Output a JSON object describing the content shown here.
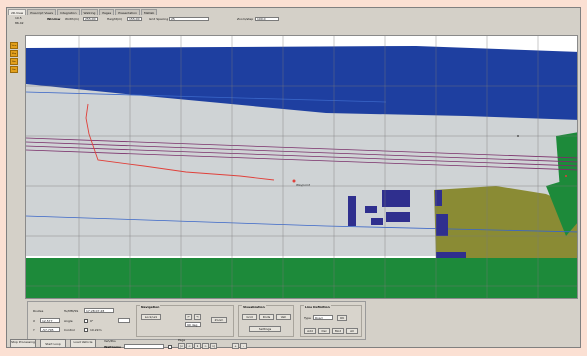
{
  "tabs": [
    {
      "label": "2D-View",
      "active": true
    },
    {
      "label": "Prescript Views",
      "active": false
    },
    {
      "label": "Integration",
      "active": false
    },
    {
      "label": "Walking",
      "active": false
    },
    {
      "label": "Pages",
      "active": false
    },
    {
      "label": "Presentation",
      "active": false
    },
    {
      "label": "Matlab",
      "active": false
    }
  ],
  "info": {
    "coord1": "10.5",
    "coord2": "86.42",
    "window_label": "Window",
    "width_label": "Width(m)",
    "width_value": "255.00",
    "height_label": "Height(m)",
    "height_value": "155.00",
    "grid_label": "Grid Spacing",
    "grid_value": "25",
    "zoom_label": "Zoom/step",
    "zoom_value": "100.0"
  },
  "left_toolbar": [
    "View",
    "Map",
    "Run",
    "Sim"
  ],
  "map": {
    "marker_label": "Waypoint",
    "colors": {
      "road": "#cfd3d5",
      "water": "#1e3fa0",
      "park": "#1d8a3a",
      "field": "#8a8b34",
      "building": "#2f2f8e",
      "grid": "#7a7a7a"
    }
  },
  "panel": {
    "stats": {
      "row1_label": "Routes",
      "row1_a": "Tu/MM/SS",
      "row1_b": "17:28:07.28",
      "row2_label": "X",
      "row2_a": "12.577",
      "row2_b": "Angle",
      "row2_c": "0°",
      "row3_label": "Y",
      "row3_a": "-57.795",
      "row3_b": "Control",
      "row3_c": "10.22m"
    },
    "navigation": {
      "title": "Navigation",
      "lock_label": "Lock/unl",
      "angle_value": "90 deg",
      "zoom_label": "Zoom"
    },
    "visualization": {
      "title": "Visualization",
      "buttons": [
        "Grid",
        "Rnds",
        "Veh"
      ],
      "settings_label": "Settings"
    },
    "line_definition": {
      "title": "Line Definition",
      "type_label": "Type",
      "type_value": "Road",
      "ok_label": "OK",
      "buttons": [
        "Add",
        "Del",
        "Mod",
        "All"
      ]
    }
  },
  "bottom": {
    "buttons": [
      "Stop Processing",
      "Start Loop",
      "Load Vehicle"
    ],
    "fps_label": "Veh/Pos",
    "fps_sub": "Waitname",
    "page_label": "Page",
    "page_buttons": [
      "|<",
      "<",
      "1",
      ">",
      ">|"
    ],
    "extra_buttons": [
      "+",
      "-"
    ]
  }
}
